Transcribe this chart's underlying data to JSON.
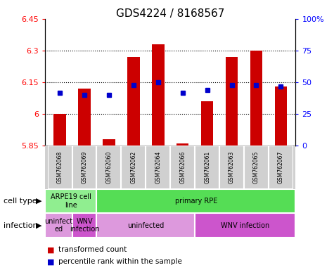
{
  "title": "GDS4224 / 8168567",
  "samples": [
    "GSM762068",
    "GSM762069",
    "GSM762060",
    "GSM762062",
    "GSM762064",
    "GSM762066",
    "GSM762061",
    "GSM762063",
    "GSM762065",
    "GSM762067"
  ],
  "red_values": [
    6.0,
    6.12,
    5.88,
    6.27,
    6.33,
    5.86,
    6.06,
    6.27,
    6.3,
    6.13
  ],
  "blue_values": [
    42,
    40,
    40,
    48,
    50,
    42,
    44,
    48,
    48,
    47
  ],
  "ylim_left": [
    5.85,
    6.45
  ],
  "ylim_right": [
    0,
    100
  ],
  "yticks_left": [
    5.85,
    6.0,
    6.15,
    6.3,
    6.45
  ],
  "yticks_right": [
    0,
    25,
    50,
    75,
    100
  ],
  "ytick_labels_left": [
    "5.85",
    "6",
    "6.15",
    "6.3",
    "6.45"
  ],
  "ytick_labels_right": [
    "0",
    "25",
    "50",
    "75",
    "100%"
  ],
  "hlines": [
    6.0,
    6.15,
    6.3
  ],
  "bar_color": "#cc0000",
  "dot_color": "#0000cc",
  "bar_bottom": 5.85,
  "cell_types": [
    [
      "ARPE19 cell\nline",
      0,
      2
    ],
    [
      "primary RPE",
      2,
      10
    ]
  ],
  "cell_type_colors": [
    "#90ee90",
    "#55dd55"
  ],
  "infections": [
    [
      "uninfect\ned",
      0,
      1
    ],
    [
      "WNV\ninfection",
      1,
      2
    ],
    [
      "uninfected",
      2,
      6
    ],
    [
      "WNV infection",
      6,
      10
    ]
  ],
  "infection_colors": [
    "#dd99dd",
    "#cc55cc",
    "#dd99dd",
    "#cc55cc"
  ],
  "cell_type_label": "cell type",
  "infection_label": "infection",
  "legend_red": "transformed count",
  "legend_blue": "percentile rank within the sample"
}
